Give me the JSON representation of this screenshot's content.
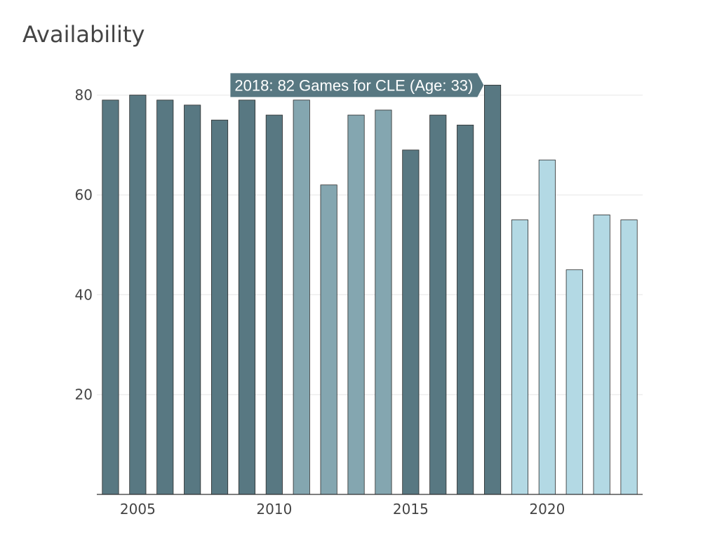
{
  "title": "Availability",
  "chart_data": {
    "type": "bar",
    "title": "Availability",
    "xlabel": "",
    "ylabel": "",
    "ylim": [
      0,
      85
    ],
    "xlim": [
      2003.5,
      2023.5
    ],
    "grid": true,
    "x_ticks": [
      2005,
      2010,
      2015,
      2020
    ],
    "y_ticks": [
      20,
      40,
      60,
      80
    ],
    "x": [
      2004,
      2005,
      2006,
      2007,
      2008,
      2009,
      2010,
      2011,
      2012,
      2013,
      2014,
      2015,
      2016,
      2017,
      2018,
      2019,
      2020,
      2021,
      2022,
      2023
    ],
    "values": [
      79,
      80,
      79,
      78,
      75,
      79,
      76,
      79,
      62,
      76,
      77,
      69,
      76,
      74,
      82,
      55,
      67,
      45,
      56,
      55
    ],
    "colors": [
      "#587882",
      "#587882",
      "#587882",
      "#587882",
      "#587882",
      "#587882",
      "#587882",
      "#84a6b0",
      "#84a6b0",
      "#84a6b0",
      "#84a6b0",
      "#587882",
      "#587882",
      "#587882",
      "#587882",
      "#b3d9e4",
      "#b3d9e4",
      "#b3d9e4",
      "#b3d9e4",
      "#b3d9e4"
    ],
    "tooltip": {
      "x": 2018,
      "text": "2018: 82 Games for CLE (Age: 33)",
      "color": "#587882"
    }
  }
}
